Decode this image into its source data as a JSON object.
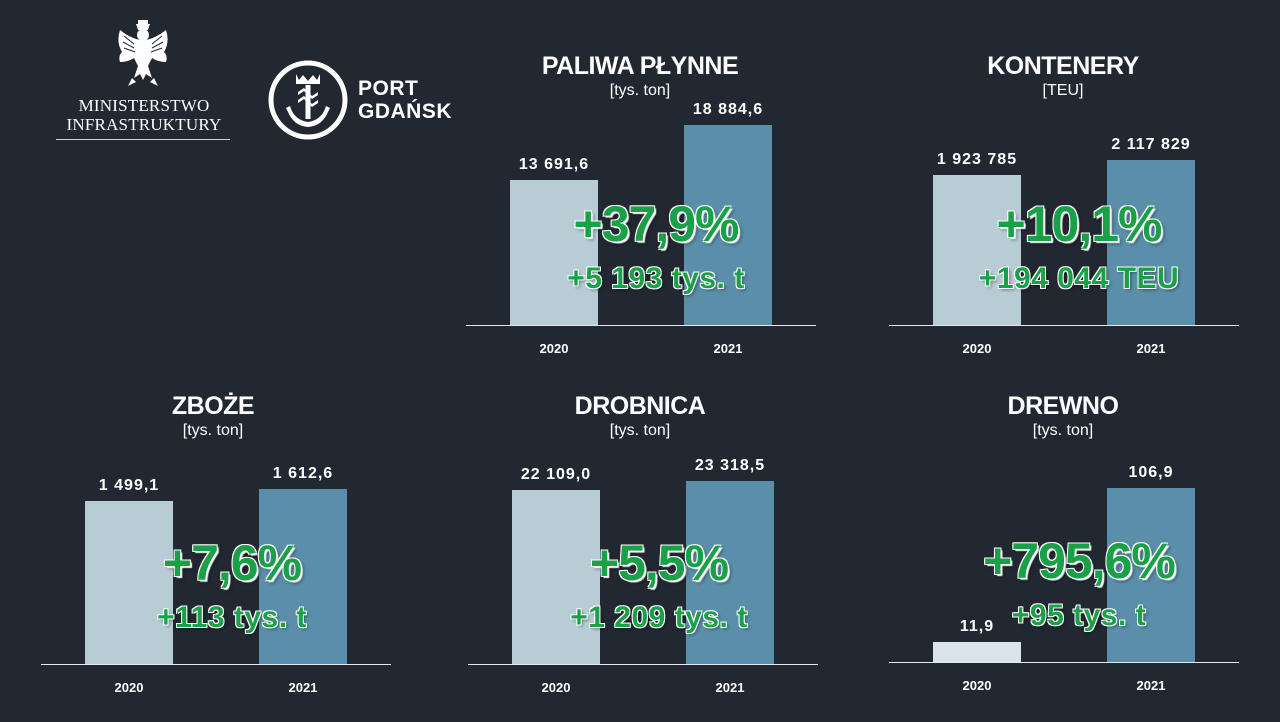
{
  "logos": {
    "ministry": {
      "line1": "MINISTERSTWO",
      "line2": "INFRASTRUKTURY"
    },
    "port": {
      "line1": "PORT",
      "line2": "GDAŃSK"
    }
  },
  "colors": {
    "background": "#222832",
    "bar_2020": "#b8ccd6",
    "bar_2021": "#5a8ea9",
    "change_text": "#1aa047"
  },
  "chart_data": [
    {
      "type": "bar",
      "title": "PALIWA PŁYNNE",
      "unit": "[tys. ton]",
      "categories": [
        "2020",
        "2021"
      ],
      "values": [
        13691.6,
        18884.6
      ],
      "value_labels": [
        "13 691,6",
        "18 884,6"
      ],
      "change_pct": "+37,9%",
      "change_abs": "+5 193 tys. t"
    },
    {
      "type": "bar",
      "title": "KONTENERY",
      "unit": "[TEU]",
      "categories": [
        "2020",
        "2021"
      ],
      "values": [
        1923785,
        2117829
      ],
      "value_labels": [
        "1 923 785",
        "2 117 829"
      ],
      "change_pct": "+10,1%",
      "change_abs": "+194 044 TEU"
    },
    {
      "type": "bar",
      "title": "ZBOŻE",
      "unit": "[tys. ton]",
      "categories": [
        "2020",
        "2021"
      ],
      "values": [
        1499.1,
        1612.6
      ],
      "value_labels": [
        "1 499,1",
        "1 612,6"
      ],
      "change_pct": "+7,6%",
      "change_abs": "+113 tys. t"
    },
    {
      "type": "bar",
      "title": "DROBNICA",
      "unit": "[tys. ton]",
      "categories": [
        "2020",
        "2021"
      ],
      "values": [
        22109.0,
        23318.5
      ],
      "value_labels": [
        "22 109,0",
        "23 318,5"
      ],
      "change_pct": "+5,5%",
      "change_abs": "+1 209 tys. t"
    },
    {
      "type": "bar",
      "title": "DREWNO",
      "unit": "[tys. ton]",
      "categories": [
        "2020",
        "2021"
      ],
      "values": [
        11.9,
        106.9
      ],
      "value_labels": [
        "11,9",
        "106,9"
      ],
      "change_pct": "+795,6%",
      "change_abs": "+95 tys. t"
    }
  ]
}
